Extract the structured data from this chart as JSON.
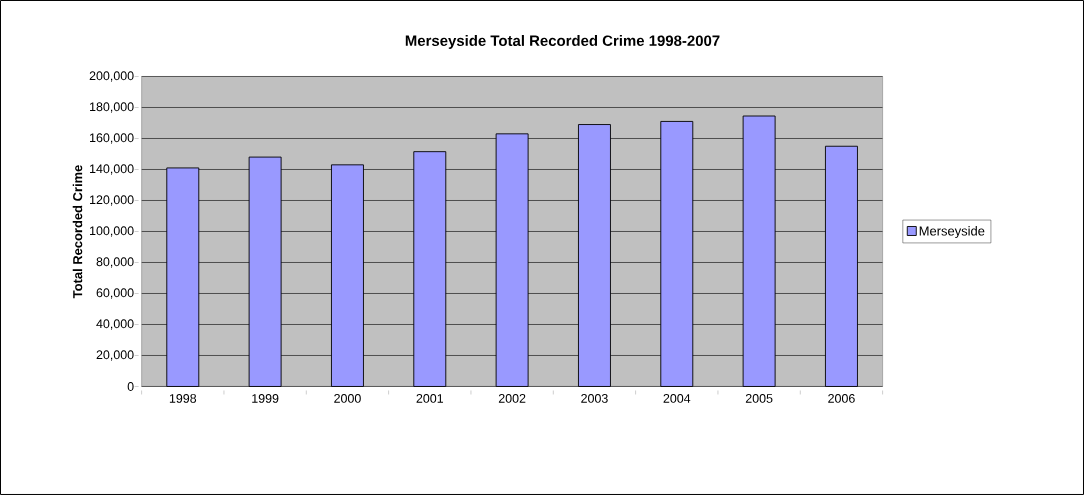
{
  "chart_data": {
    "type": "bar",
    "title": "Merseyside Total Recorded Crime 1998-2007",
    "ylabel": "Total Recorded Crime",
    "categories": [
      "1998",
      "1999",
      "2000",
      "2001",
      "2002",
      "2003",
      "2004",
      "2005",
      "2006"
    ],
    "series": [
      {
        "name": "Merseyside",
        "color": "#9999ff",
        "values": [
          141000,
          148000,
          143000,
          151500,
          163000,
          169000,
          171000,
          174500,
          155000
        ]
      }
    ],
    "ylim": [
      0,
      200000
    ],
    "yticks": [
      0,
      {
        "value": 20000,
        "label": "20,000"
      },
      {
        "value": 40000,
        "label": "40,000"
      },
      {
        "value": 60000,
        "label": "60,000"
      },
      {
        "value": 80000,
        "label": "80,000"
      },
      {
        "value": 100000,
        "label": "100,000"
      },
      {
        "value": 120000,
        "label": "120,000"
      },
      {
        "value": 140000,
        "label": "140,000"
      },
      {
        "value": 160000,
        "label": "160,000"
      },
      {
        "value": 180000,
        "label": "180,000"
      },
      {
        "value": 200000,
        "label": "200,000"
      }
    ],
    "grid": "y",
    "legend": "right"
  }
}
